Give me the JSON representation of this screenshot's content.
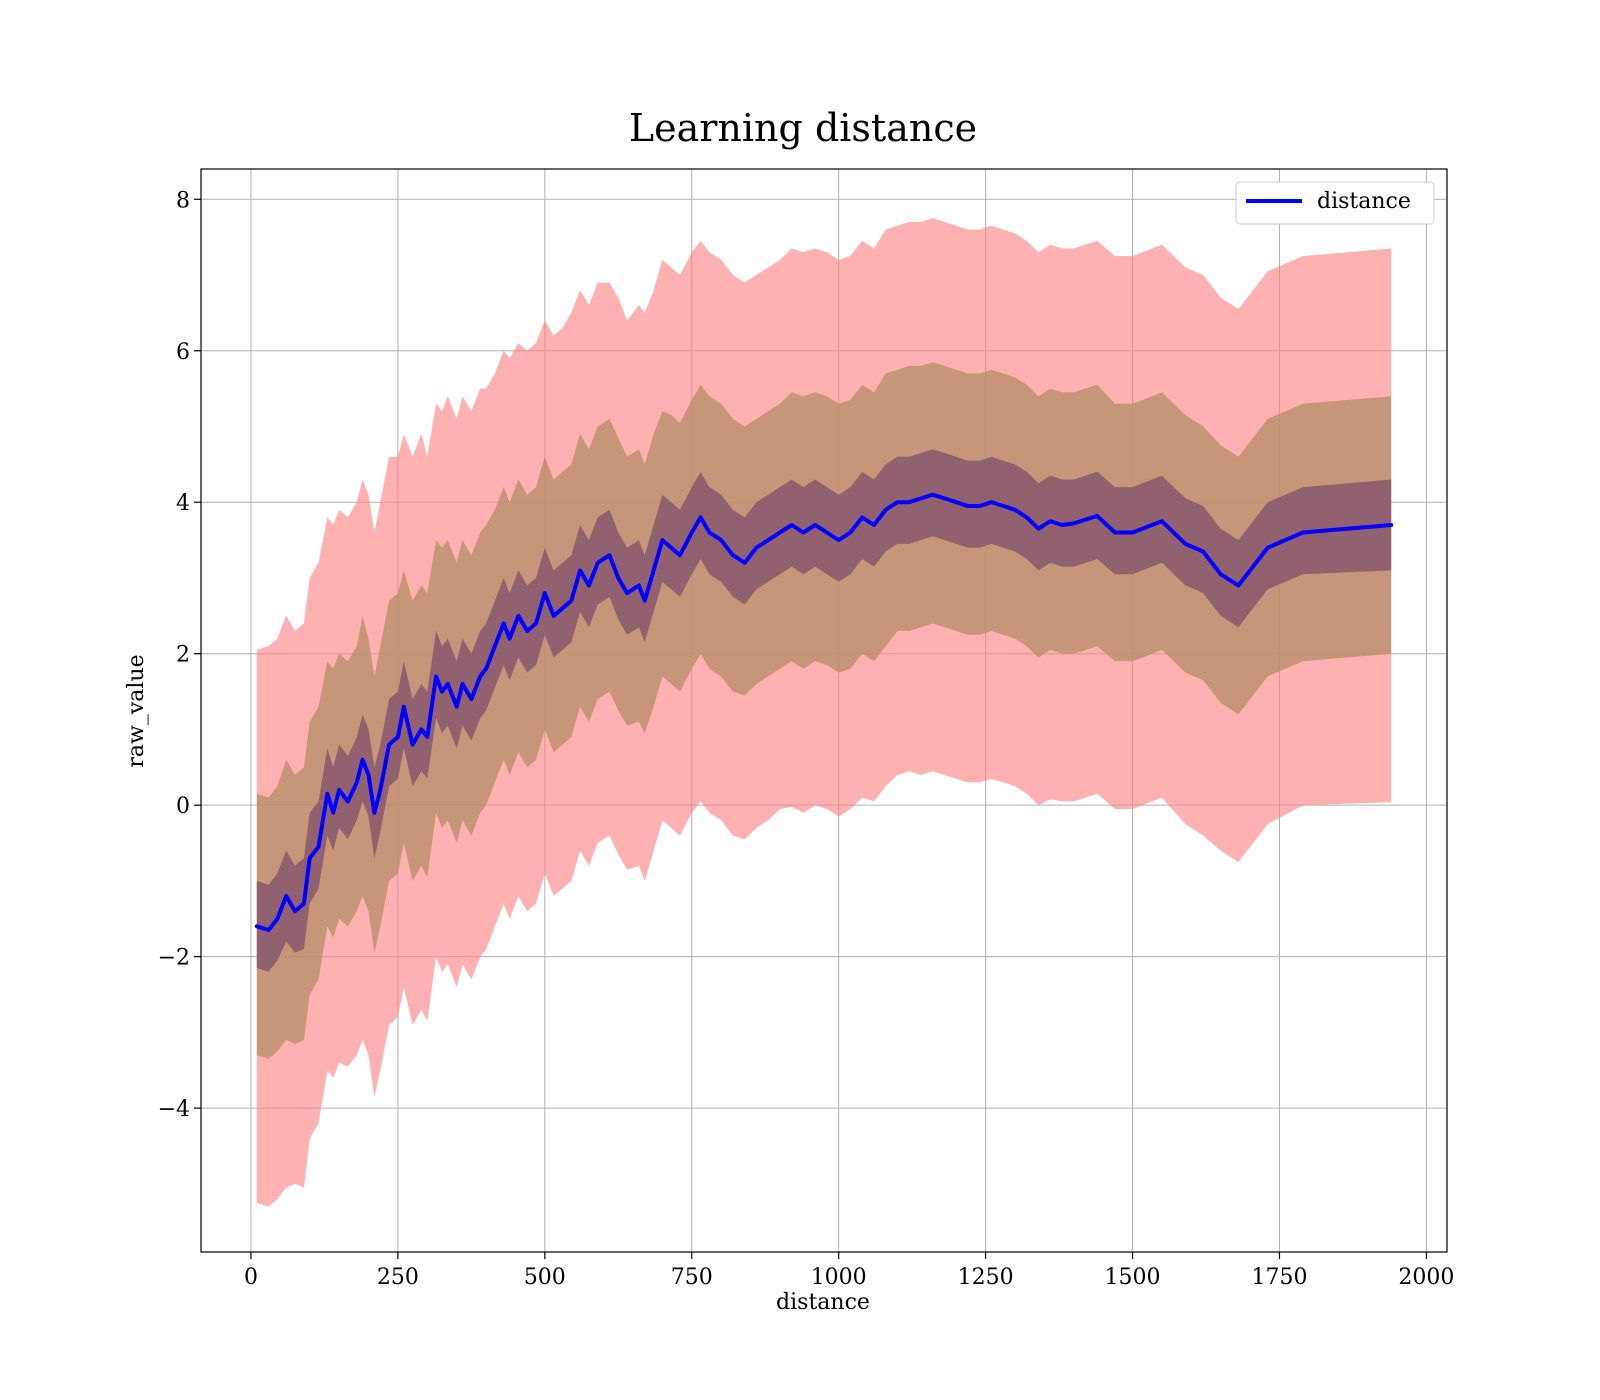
{
  "chart_data": {
    "type": "line",
    "title": "Learning distance",
    "xlabel": "distance",
    "ylabel": "raw_value",
    "xlim": [
      -85,
      2035
    ],
    "ylim": [
      -5.9,
      8.4
    ],
    "xticks": [
      0,
      250,
      500,
      750,
      1000,
      1250,
      1500,
      1750,
      2000
    ],
    "xtick_labels": [
      "0",
      "250",
      "500",
      "750",
      "1000",
      "1250",
      "1500",
      "1750",
      "2000"
    ],
    "yticks": [
      -4,
      -2,
      0,
      2,
      4,
      6,
      8
    ],
    "ytick_labels": [
      "−4",
      "−2",
      "0",
      "2",
      "4",
      "6",
      "8"
    ],
    "grid": true,
    "legend_position": "top-right",
    "colors": {
      "line": "#0000ff",
      "outer_band": "#ff8080",
      "middle_band": "#b48c64",
      "inner_band": "#80506e"
    },
    "x": [
      10,
      30,
      45,
      60,
      75,
      90,
      100,
      115,
      130,
      140,
      150,
      165,
      180,
      190,
      200,
      210,
      220,
      235,
      250,
      260,
      275,
      290,
      300,
      315,
      325,
      335,
      350,
      360,
      375,
      390,
      400,
      415,
      430,
      440,
      455,
      470,
      485,
      500,
      515,
      530,
      545,
      560,
      575,
      590,
      610,
      625,
      640,
      660,
      670,
      685,
      700,
      715,
      730,
      750,
      765,
      780,
      800,
      820,
      840,
      860,
      880,
      900,
      920,
      940,
      960,
      980,
      1000,
      1020,
      1040,
      1060,
      1080,
      1100,
      1120,
      1140,
      1160,
      1180,
      1200,
      1220,
      1240,
      1260,
      1280,
      1300,
      1320,
      1340,
      1360,
      1380,
      1400,
      1440,
      1470,
      1500,
      1550,
      1590,
      1620,
      1650,
      1680,
      1730,
      1790,
      1940
    ],
    "series": [
      {
        "name": "distance",
        "values": [
          -1.6,
          -1.65,
          -1.5,
          -1.2,
          -1.4,
          -1.3,
          -0.7,
          -0.55,
          0.15,
          -0.1,
          0.2,
          0.05,
          0.3,
          0.6,
          0.4,
          -0.1,
          0.2,
          0.8,
          0.9,
          1.3,
          0.8,
          1.0,
          0.9,
          1.7,
          1.5,
          1.6,
          1.3,
          1.6,
          1.4,
          1.7,
          1.8,
          2.1,
          2.4,
          2.2,
          2.5,
          2.3,
          2.4,
          2.8,
          2.5,
          2.6,
          2.7,
          3.1,
          2.9,
          3.2,
          3.3,
          3.0,
          2.8,
          2.9,
          2.7,
          3.1,
          3.5,
          3.4,
          3.3,
          3.6,
          3.8,
          3.6,
          3.5,
          3.3,
          3.2,
          3.4,
          3.5,
          3.6,
          3.7,
          3.6,
          3.7,
          3.6,
          3.5,
          3.6,
          3.8,
          3.7,
          3.9,
          4.0,
          4.0,
          4.05,
          4.1,
          4.05,
          4.0,
          3.95,
          3.95,
          4.0,
          3.95,
          3.9,
          3.8,
          3.65,
          3.75,
          3.7,
          3.72,
          3.82,
          3.6,
          3.6,
          3.75,
          3.45,
          3.35,
          3.05,
          2.9,
          3.4,
          3.6,
          3.7
        ]
      }
    ],
    "bands": [
      {
        "lower": [
          -5.25,
          -5.3,
          -5.2,
          -5.05,
          -5.0,
          -5.05,
          -4.4,
          -4.2,
          -3.5,
          -3.6,
          -3.4,
          -3.45,
          -3.3,
          -3.1,
          -3.3,
          -3.85,
          -3.5,
          -2.9,
          -2.8,
          -2.4,
          -2.9,
          -2.7,
          -2.85,
          -2.0,
          -2.2,
          -2.1,
          -2.4,
          -2.1,
          -2.3,
          -2.0,
          -1.9,
          -1.6,
          -1.3,
          -1.5,
          -1.2,
          -1.4,
          -1.3,
          -0.9,
          -1.2,
          -1.1,
          -1.0,
          -0.6,
          -0.8,
          -0.5,
          -0.4,
          -0.65,
          -0.85,
          -0.8,
          -1.0,
          -0.6,
          -0.2,
          -0.3,
          -0.4,
          -0.1,
          0.05,
          -0.1,
          -0.2,
          -0.4,
          -0.45,
          -0.3,
          -0.2,
          -0.05,
          -0.02,
          -0.1,
          0.0,
          -0.05,
          -0.15,
          -0.05,
          0.1,
          0.05,
          0.25,
          0.4,
          0.45,
          0.4,
          0.45,
          0.4,
          0.35,
          0.3,
          0.3,
          0.35,
          0.3,
          0.25,
          0.15,
          0.0,
          0.08,
          0.05,
          0.05,
          0.15,
          -0.05,
          -0.05,
          0.1,
          -0.25,
          -0.4,
          -0.6,
          -0.75,
          -0.25,
          0.0,
          0.04
        ],
        "upper": [
          2.05,
          2.1,
          2.2,
          2.5,
          2.3,
          2.4,
          3.0,
          3.2,
          3.8,
          3.7,
          3.9,
          3.8,
          4.0,
          4.3,
          4.1,
          3.6,
          4.0,
          4.6,
          4.6,
          4.9,
          4.6,
          4.9,
          4.6,
          5.3,
          5.2,
          5.4,
          5.1,
          5.4,
          5.2,
          5.5,
          5.5,
          5.7,
          6.0,
          5.9,
          6.1,
          6.0,
          6.1,
          6.4,
          6.2,
          6.3,
          6.5,
          6.8,
          6.6,
          6.9,
          6.9,
          6.7,
          6.4,
          6.6,
          6.5,
          6.8,
          7.2,
          7.1,
          7.0,
          7.3,
          7.45,
          7.3,
          7.2,
          7.0,
          6.9,
          7.0,
          7.1,
          7.2,
          7.35,
          7.3,
          7.35,
          7.3,
          7.2,
          7.25,
          7.45,
          7.35,
          7.6,
          7.65,
          7.7,
          7.7,
          7.75,
          7.7,
          7.65,
          7.6,
          7.6,
          7.65,
          7.6,
          7.55,
          7.45,
          7.3,
          7.4,
          7.35,
          7.35,
          7.45,
          7.25,
          7.25,
          7.4,
          7.1,
          7.0,
          6.7,
          6.55,
          7.05,
          7.25,
          7.35
        ]
      },
      {
        "lower": [
          -3.3,
          -3.35,
          -3.25,
          -3.1,
          -3.15,
          -3.1,
          -2.5,
          -2.3,
          -1.6,
          -1.75,
          -1.5,
          -1.6,
          -1.4,
          -1.2,
          -1.4,
          -1.95,
          -1.6,
          -1.0,
          -0.9,
          -0.5,
          -1.0,
          -0.8,
          -0.95,
          -0.1,
          -0.3,
          -0.2,
          -0.5,
          -0.2,
          -0.4,
          -0.1,
          0.0,
          0.3,
          0.6,
          0.4,
          0.7,
          0.5,
          0.6,
          1.0,
          0.7,
          0.8,
          0.9,
          1.3,
          1.1,
          1.4,
          1.5,
          1.25,
          1.05,
          1.1,
          0.95,
          1.3,
          1.7,
          1.6,
          1.5,
          1.8,
          2.0,
          1.8,
          1.7,
          1.5,
          1.45,
          1.6,
          1.7,
          1.8,
          1.9,
          1.8,
          1.9,
          1.85,
          1.75,
          1.8,
          2.0,
          1.9,
          2.1,
          2.3,
          2.3,
          2.35,
          2.4,
          2.35,
          2.3,
          2.25,
          2.25,
          2.3,
          2.25,
          2.2,
          2.1,
          1.95,
          2.05,
          2.0,
          2.0,
          2.1,
          1.9,
          1.9,
          2.05,
          1.75,
          1.65,
          1.35,
          1.2,
          1.7,
          1.9,
          2.0
        ],
        "upper": [
          0.15,
          0.1,
          0.25,
          0.6,
          0.4,
          0.5,
          1.1,
          1.3,
          1.9,
          1.8,
          2.0,
          1.9,
          2.1,
          2.5,
          2.2,
          1.7,
          2.1,
          2.7,
          2.8,
          3.1,
          2.7,
          2.9,
          2.8,
          3.5,
          3.4,
          3.5,
          3.2,
          3.5,
          3.3,
          3.6,
          3.7,
          3.9,
          4.2,
          4.0,
          4.3,
          4.1,
          4.2,
          4.6,
          4.3,
          4.4,
          4.5,
          4.9,
          4.7,
          5.0,
          5.1,
          4.85,
          4.6,
          4.7,
          4.5,
          4.9,
          5.2,
          5.15,
          5.05,
          5.35,
          5.55,
          5.4,
          5.3,
          5.1,
          5.0,
          5.1,
          5.2,
          5.3,
          5.45,
          5.4,
          5.45,
          5.4,
          5.3,
          5.35,
          5.55,
          5.45,
          5.7,
          5.75,
          5.8,
          5.8,
          5.85,
          5.8,
          5.75,
          5.7,
          5.7,
          5.75,
          5.7,
          5.65,
          5.55,
          5.4,
          5.5,
          5.45,
          5.45,
          5.55,
          5.3,
          5.3,
          5.45,
          5.15,
          5.0,
          4.75,
          4.6,
          5.1,
          5.3,
          5.4
        ]
      },
      {
        "lower": [
          -2.15,
          -2.2,
          -2.05,
          -1.8,
          -1.95,
          -1.9,
          -1.3,
          -1.1,
          -0.4,
          -0.6,
          -0.3,
          -0.45,
          -0.2,
          0.05,
          -0.15,
          -0.7,
          -0.35,
          0.25,
          0.35,
          0.75,
          0.25,
          0.45,
          0.35,
          1.15,
          0.95,
          1.05,
          0.75,
          1.05,
          0.85,
          1.15,
          1.25,
          1.55,
          1.85,
          1.65,
          1.95,
          1.75,
          1.85,
          2.25,
          1.95,
          2.05,
          2.15,
          2.55,
          2.35,
          2.65,
          2.75,
          2.45,
          2.25,
          2.35,
          2.15,
          2.55,
          2.95,
          2.85,
          2.75,
          3.05,
          3.25,
          3.05,
          2.95,
          2.75,
          2.65,
          2.85,
          2.95,
          3.05,
          3.15,
          3.05,
          3.15,
          3.05,
          2.95,
          3.05,
          3.25,
          3.15,
          3.35,
          3.45,
          3.45,
          3.5,
          3.55,
          3.5,
          3.45,
          3.4,
          3.4,
          3.45,
          3.4,
          3.35,
          3.25,
          3.1,
          3.2,
          3.15,
          3.15,
          3.25,
          3.05,
          3.05,
          3.2,
          2.9,
          2.8,
          2.5,
          2.35,
          2.85,
          3.05,
          3.1
        ],
        "upper": [
          -1.0,
          -1.05,
          -0.9,
          -0.6,
          -0.8,
          -0.7,
          -0.1,
          0.05,
          0.75,
          0.5,
          0.8,
          0.65,
          0.9,
          1.2,
          1.0,
          0.5,
          0.8,
          1.4,
          1.5,
          1.9,
          1.4,
          1.6,
          1.5,
          2.3,
          2.1,
          2.2,
          1.9,
          2.2,
          2.0,
          2.3,
          2.4,
          2.7,
          3.0,
          2.8,
          3.1,
          2.9,
          3.0,
          3.4,
          3.1,
          3.2,
          3.3,
          3.7,
          3.5,
          3.8,
          3.9,
          3.6,
          3.4,
          3.5,
          3.3,
          3.7,
          4.1,
          4.0,
          3.9,
          4.2,
          4.4,
          4.2,
          4.1,
          3.9,
          3.8,
          4.0,
          4.1,
          4.2,
          4.3,
          4.2,
          4.3,
          4.2,
          4.1,
          4.2,
          4.4,
          4.3,
          4.5,
          4.6,
          4.6,
          4.65,
          4.7,
          4.65,
          4.6,
          4.55,
          4.55,
          4.6,
          4.55,
          4.5,
          4.4,
          4.25,
          4.35,
          4.3,
          4.3,
          4.4,
          4.2,
          4.2,
          4.35,
          4.05,
          3.95,
          3.65,
          3.5,
          4.0,
          4.2,
          4.3
        ]
      }
    ]
  }
}
